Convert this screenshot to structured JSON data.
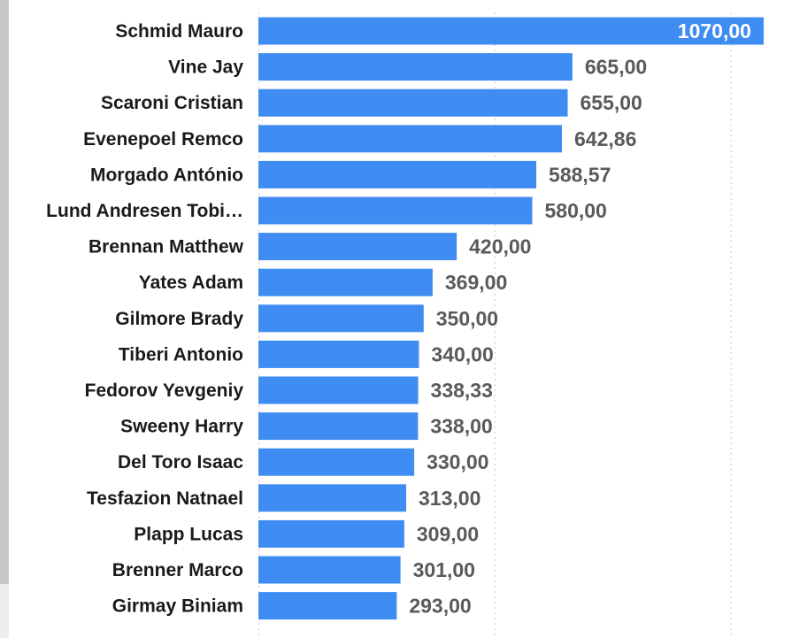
{
  "chart_data": {
    "type": "bar",
    "orientation": "horizontal",
    "title": "",
    "xlabel": "",
    "ylabel": "",
    "categories": [
      "Schmid Mauro",
      "Vine Jay",
      "Scaroni Cristian",
      "Evenepoel Remco",
      "Morgado António",
      "Lund Andresen Tobi…",
      "Brennan Matthew",
      "Yates Adam",
      "Gilmore Brady",
      "Tiberi Antonio",
      "Fedorov Yevgeniy",
      "Sweeny Harry",
      "Del Toro Isaac",
      "Tesfazion Natnael",
      "Plapp Lucas",
      "Brenner Marco",
      "Girmay Biniam"
    ],
    "values": [
      1070,
      665,
      655,
      642.86,
      588.57,
      580,
      420,
      369,
      350,
      340,
      338.33,
      338,
      330,
      313,
      309,
      301,
      293
    ],
    "value_labels": [
      "1070,00",
      "665,00",
      "655,00",
      "642,86",
      "588,57",
      "580,00",
      "420,00",
      "369,00",
      "350,00",
      "340,00",
      "338,33",
      "338,00",
      "330,00",
      "313,00",
      "309,00",
      "301,00",
      "293,00"
    ],
    "xlim": [
      0,
      1100
    ],
    "gridlines_at": [
      0,
      500,
      1000
    ],
    "grid": true,
    "legend": "none",
    "bar_color": "#3f8cf2",
    "label_color": "#1a1a1a",
    "value_label_color": "#5a5a5a",
    "value_label_inside_color": "#ffffff"
  }
}
